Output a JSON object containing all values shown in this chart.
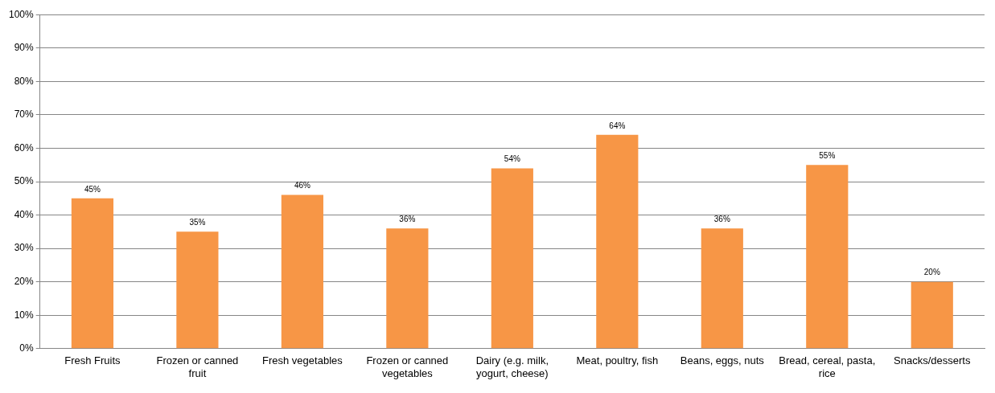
{
  "chart_data": {
    "type": "bar",
    "categories": [
      "Fresh Fruits",
      "Frozen or canned fruit",
      "Fresh vegetables",
      "Frozen or canned vegetables",
      "Dairy (e.g. milk, yogurt, cheese)",
      "Meat, poultry, fish",
      "Beans, eggs, nuts",
      "Bread, cereal, pasta, rice",
      "Snacks/desserts"
    ],
    "values": [
      45,
      35,
      46,
      36,
      54,
      64,
      36,
      55,
      20
    ],
    "value_labels": [
      "45%",
      "35%",
      "46%",
      "36%",
      "54%",
      "64%",
      "36%",
      "55%",
      "20%"
    ],
    "color": "#f79646",
    "ylim": [
      0,
      100
    ],
    "yticks": [
      {
        "value": 0,
        "label": "0%"
      },
      {
        "value": 10,
        "label": "10%"
      },
      {
        "value": 20,
        "label": "20%"
      },
      {
        "value": 30,
        "label": "30%"
      },
      {
        "value": 40,
        "label": "40%"
      },
      {
        "value": 50,
        "label": "50%"
      },
      {
        "value": 60,
        "label": "60%"
      },
      {
        "value": 70,
        "label": "70%"
      },
      {
        "value": 80,
        "label": "80%"
      },
      {
        "value": 90,
        "label": "90%"
      },
      {
        "value": 100,
        "label": "100%"
      }
    ],
    "grid": "y",
    "legend": false
  }
}
